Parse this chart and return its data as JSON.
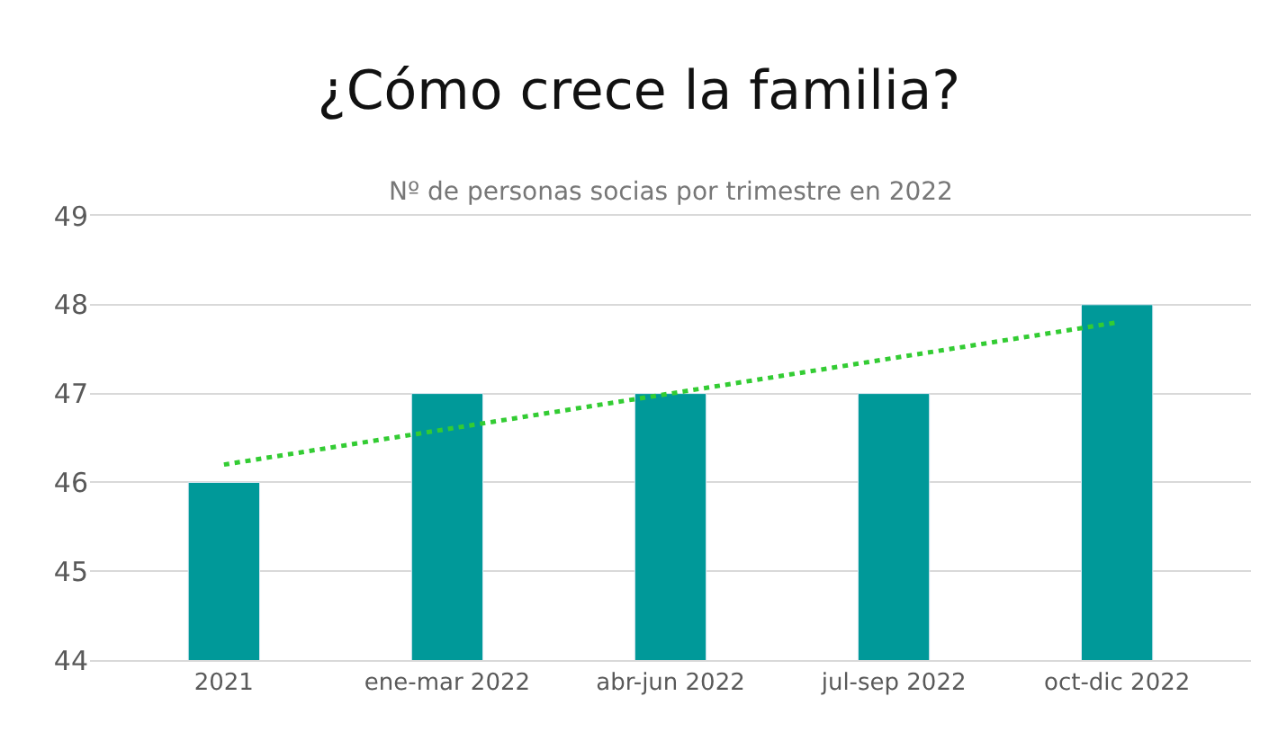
{
  "chart_data": {
    "type": "bar",
    "title": "¿Cómo crece la familia?",
    "subtitle": "Nº de personas socias por trimestre en 2022",
    "categories": [
      "2021",
      "ene-mar 2022",
      "abr-jun 2022",
      "jul-sep 2022",
      "oct-dic 2022"
    ],
    "series": [
      {
        "color": "#009999",
        "values": [
          46,
          47,
          47,
          47,
          48
        ]
      },
      {
        "type": "line",
        "color": "#33cc33",
        "line_style": "dotted",
        "values": [
          46.2,
          46.6,
          47.0,
          47.4,
          47.8
        ]
      }
    ],
    "ylim": [
      44,
      49
    ],
    "yticks": [
      44,
      45,
      46,
      47,
      48,
      49
    ],
    "grid": "y"
  }
}
